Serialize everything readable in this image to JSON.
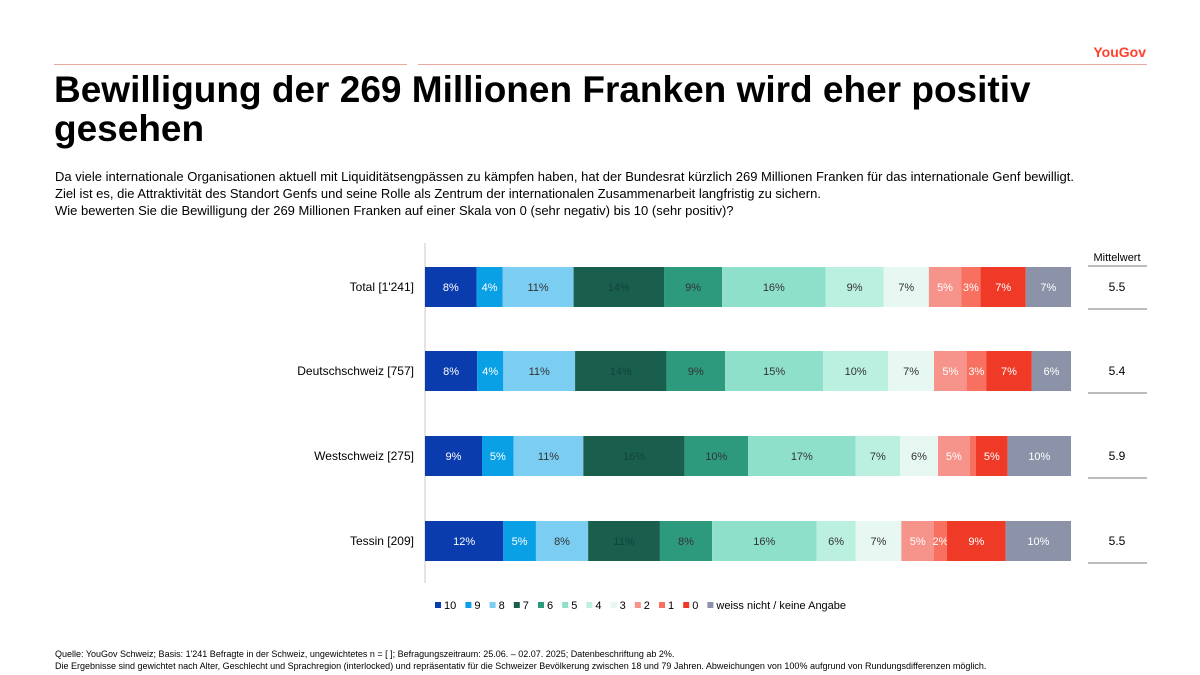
{
  "brand": "YouGov",
  "title": "Bewilligung der 269 Millionen Franken wird eher positiv gesehen",
  "intro": [
    "Da viele internationale Organisationen aktuell mit Liquiditätsengpässen zu kämpfen haben, hat der Bundesrat kürzlich 269 Millionen Franken für das internationale Genf bewilligt.",
    "Ziel ist es, die Attraktivität des Standort Genfs und seine Rolle als Zentrum der internationalen Zusammenarbeit langfristig zu sichern.",
    "Wie bewerten Sie die Bewilligung der 269 Millionen Franken auf einer Skala von 0 (sehr negativ) bis 10 (sehr positiv)?"
  ],
  "footer": [
    "Quelle: YouGov Schweiz; Basis: 1'241 Befragte in der Schweiz, ungewichtetes n = [ ]; Befragungszeitraum: 25.06. – 02.07. 2025; Datenbeschriftung ab 2%.",
    "Die Ergebnisse sind gewichtet nach Alter, Geschlecht und Sprachregion (interlocked) und repräsentativ für die Schweizer Bevölkerung zwischen 18 und 79 Jahren. Abweichungen von 100% aufgrund von Rundungsdifferenzen möglich."
  ],
  "chart_data": {
    "type": "bar",
    "orientation": "horizontal",
    "stacked": true,
    "normalized": true,
    "categories": [
      "Total [1'241]",
      "Deutschschweiz [757]",
      "Westschweiz [275]",
      "Tessin [209]"
    ],
    "series": [
      {
        "name": "10",
        "color": "#0a3cad",
        "values": [
          8,
          8,
          9,
          12
        ]
      },
      {
        "name": "9",
        "color": "#0aa0e6",
        "values": [
          4,
          4,
          5,
          5
        ]
      },
      {
        "name": "8",
        "color": "#7ccdf2",
        "values": [
          11,
          11,
          11,
          8
        ]
      },
      {
        "name": "7",
        "color": "#1a5e4e",
        "values": [
          14,
          14,
          16,
          11
        ]
      },
      {
        "name": "6",
        "color": "#2d9a7e",
        "values": [
          9,
          9,
          10,
          8
        ]
      },
      {
        "name": "5",
        "color": "#8ee0ca",
        "values": [
          16,
          15,
          17,
          16
        ]
      },
      {
        "name": "4",
        "color": "#bbefe0",
        "values": [
          9,
          10,
          7,
          6
        ]
      },
      {
        "name": "3",
        "color": "#e6f8f1",
        "values": [
          7,
          7,
          6,
          7
        ]
      },
      {
        "name": "2",
        "color": "#f6938a",
        "values": [
          5,
          5,
          5,
          5
        ]
      },
      {
        "name": "1",
        "color": "#f8705f",
        "values": [
          3,
          3,
          1,
          2
        ]
      },
      {
        "name": "0",
        "color": "#f03a28",
        "values": [
          7,
          7,
          5,
          9
        ]
      },
      {
        "name": "weiss nicht / keine Angabe",
        "color": "#8c93a8",
        "values": [
          7,
          6,
          10,
          10
        ]
      }
    ],
    "data_label_threshold": 2,
    "mean_header": "Mittelwert",
    "means": [
      "5.5",
      "5.4",
      "5.9",
      "5.5"
    ],
    "legend_position": "bottom"
  }
}
